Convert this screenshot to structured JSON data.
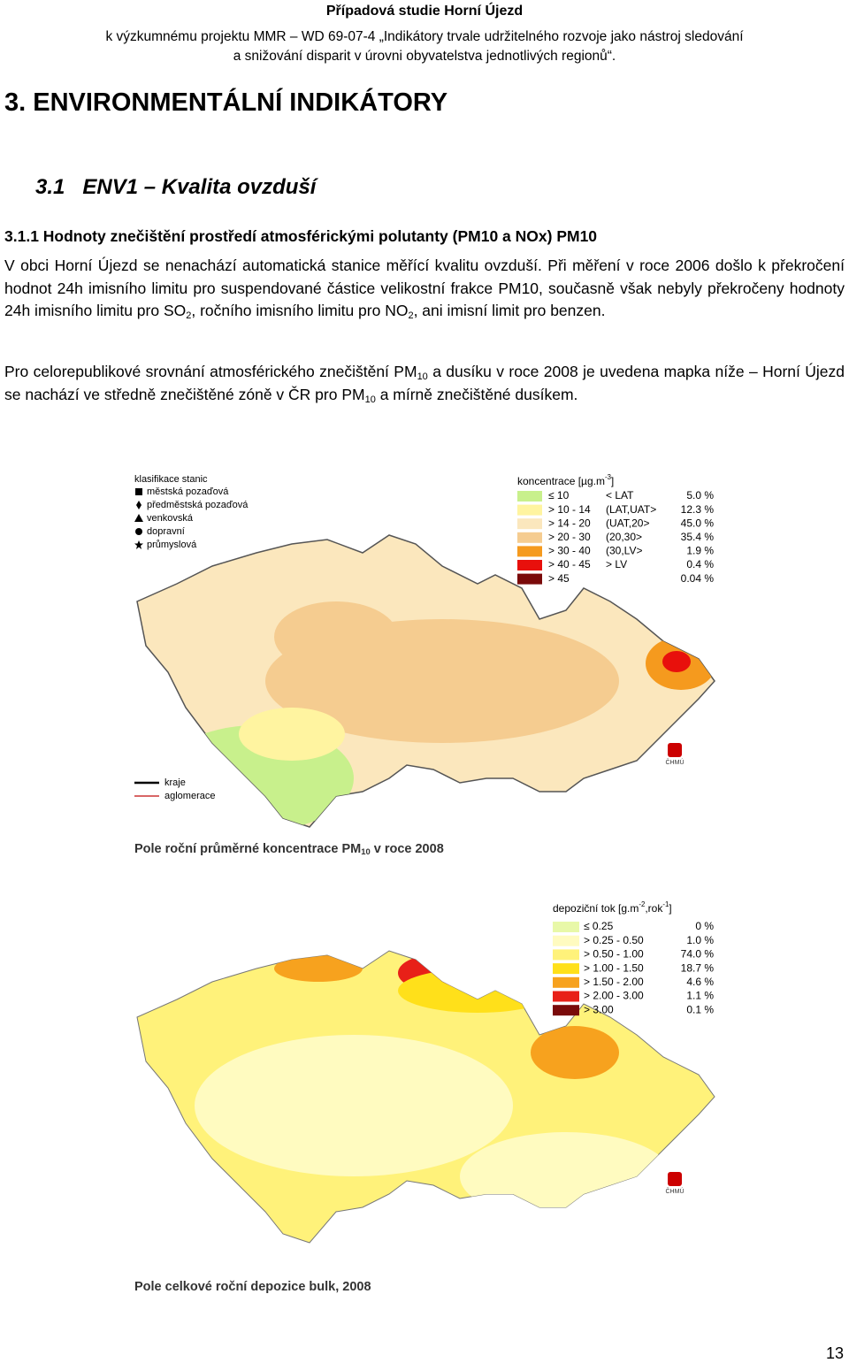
{
  "header": {
    "title": "Případová studie Horní Újezd",
    "line1": "k výzkumnému projektu MMR – WD 69-07-4 „Indikátory trvale udržitelného rozvoje jako nástroj sledování",
    "line2": "a snižování disparit v úrovni obyvatelstva jednotlivých regionů“."
  },
  "section_title": "3. ENVIRONMENTÁLNÍ INDIKÁTORY",
  "subsection_title": "3.1   ENV1 – Kvalita ovzduší",
  "subsubsection_title": "3.1.1 Hodnoty znečištění prostředí atmosférickými polutanty (PM10 a NOx) PM10",
  "paragraphs": [
    {
      "runs": [
        {
          "text": "V obci Horní Újezd se nenachází automatická stanice měřící kvalitu ovzduší. Při měření v roce 2006 došlo k překročení hodnot 24h imisního limitu pro suspendované částice velikostní frakce PM10, současně však nebyly překročeny hodnoty 24h imisního limitu pro SO"
        },
        {
          "sub": "2"
        },
        {
          "text": ", ročního imisního limitu pro NO"
        },
        {
          "sub": "2"
        },
        {
          "text": ", ani imisní limit pro benzen."
        }
      ]
    },
    {
      "runs": [
        {
          "text": "Pro celorepublikové srovnání atmosférického znečištění PM"
        },
        {
          "sub": "10"
        },
        {
          "text": " a dusíku v roce 2008 je uvedena mapka níže – Horní Újezd se nachází ve středně znečištěné zóně v ČR pro PM"
        },
        {
          "sub": "10"
        },
        {
          "text": " a mírně znečištěné dusíkem."
        }
      ]
    }
  ],
  "map1": {
    "stations_title": "klasifikace stanic",
    "stations": [
      "městská pozaďová",
      "předměstská pozaďová",
      "venkovská",
      "dopravní",
      "průmyslová"
    ],
    "legend_title": [
      {
        "text": "koncentrace [µg.m"
      },
      {
        "sup": "-3"
      },
      {
        "text": "]"
      }
    ],
    "rows": [
      {
        "range": "≤ 10",
        "class": "< LAT",
        "percent": "5.0 %",
        "color": "#c8f08c"
      },
      {
        "range": "> 10 - 14",
        "class": "(LAT,UAT>",
        "percent": "12.3 %",
        "color": "#fff4a0"
      },
      {
        "range": "> 14 - 20",
        "class": "(UAT,20>",
        "percent": "45.0 %",
        "color": "#fbe7bd"
      },
      {
        "range": "> 20 - 30",
        "class": "(20,30>",
        "percent": "35.4 %",
        "color": "#f5cc90"
      },
      {
        "range": "> 30 - 40",
        "class": "(30,LV>",
        "percent": "1.9 %",
        "color": "#f59a1e"
      },
      {
        "range": "> 40 - 45",
        "class": "> LV",
        "percent": "0.4 %",
        "color": "#e8100c"
      },
      {
        "range": "> 45",
        "class": "",
        "percent": "0.04 %",
        "color": "#7a0a0a"
      }
    ],
    "lines": [
      "kraje",
      "aglomerace"
    ],
    "logo": "ČHMÚ",
    "caption": [
      {
        "text": "Pole roční průměrné koncentrace PM"
      },
      {
        "sub": "10"
      },
      {
        "text": " v roce 2008"
      }
    ]
  },
  "map2": {
    "legend_title": [
      {
        "text": "depoziční tok [g.m"
      },
      {
        "sup": "-2"
      },
      {
        "text": ",rok"
      },
      {
        "sup": "-1"
      },
      {
        "text": "]"
      }
    ],
    "rows": [
      {
        "range": "≤ 0.25",
        "percent": "0 %",
        "color": "#e8f8a8"
      },
      {
        "range": "> 0.25 - 0.50",
        "percent": "1.0 %",
        "color": "#fffbc0"
      },
      {
        "range": "> 0.50 - 1.00",
        "percent": "74.0 %",
        "color": "#fff27a"
      },
      {
        "range": "> 1.00 - 1.50",
        "percent": "18.7 %",
        "color": "#ffe01a"
      },
      {
        "range": "> 1.50 - 2.00",
        "percent": "4.6 %",
        "color": "#f7a21e"
      },
      {
        "range": "> 2.00 - 3.00",
        "percent": "1.1 %",
        "color": "#e82018"
      },
      {
        "range": "> 3.00",
        "percent": "0.1 %",
        "color": "#7a0a0a"
      }
    ],
    "logo": "ČHMÚ",
    "caption": "Pole celkové roční depozice bulk, 2008"
  },
  "page_number": "13"
}
